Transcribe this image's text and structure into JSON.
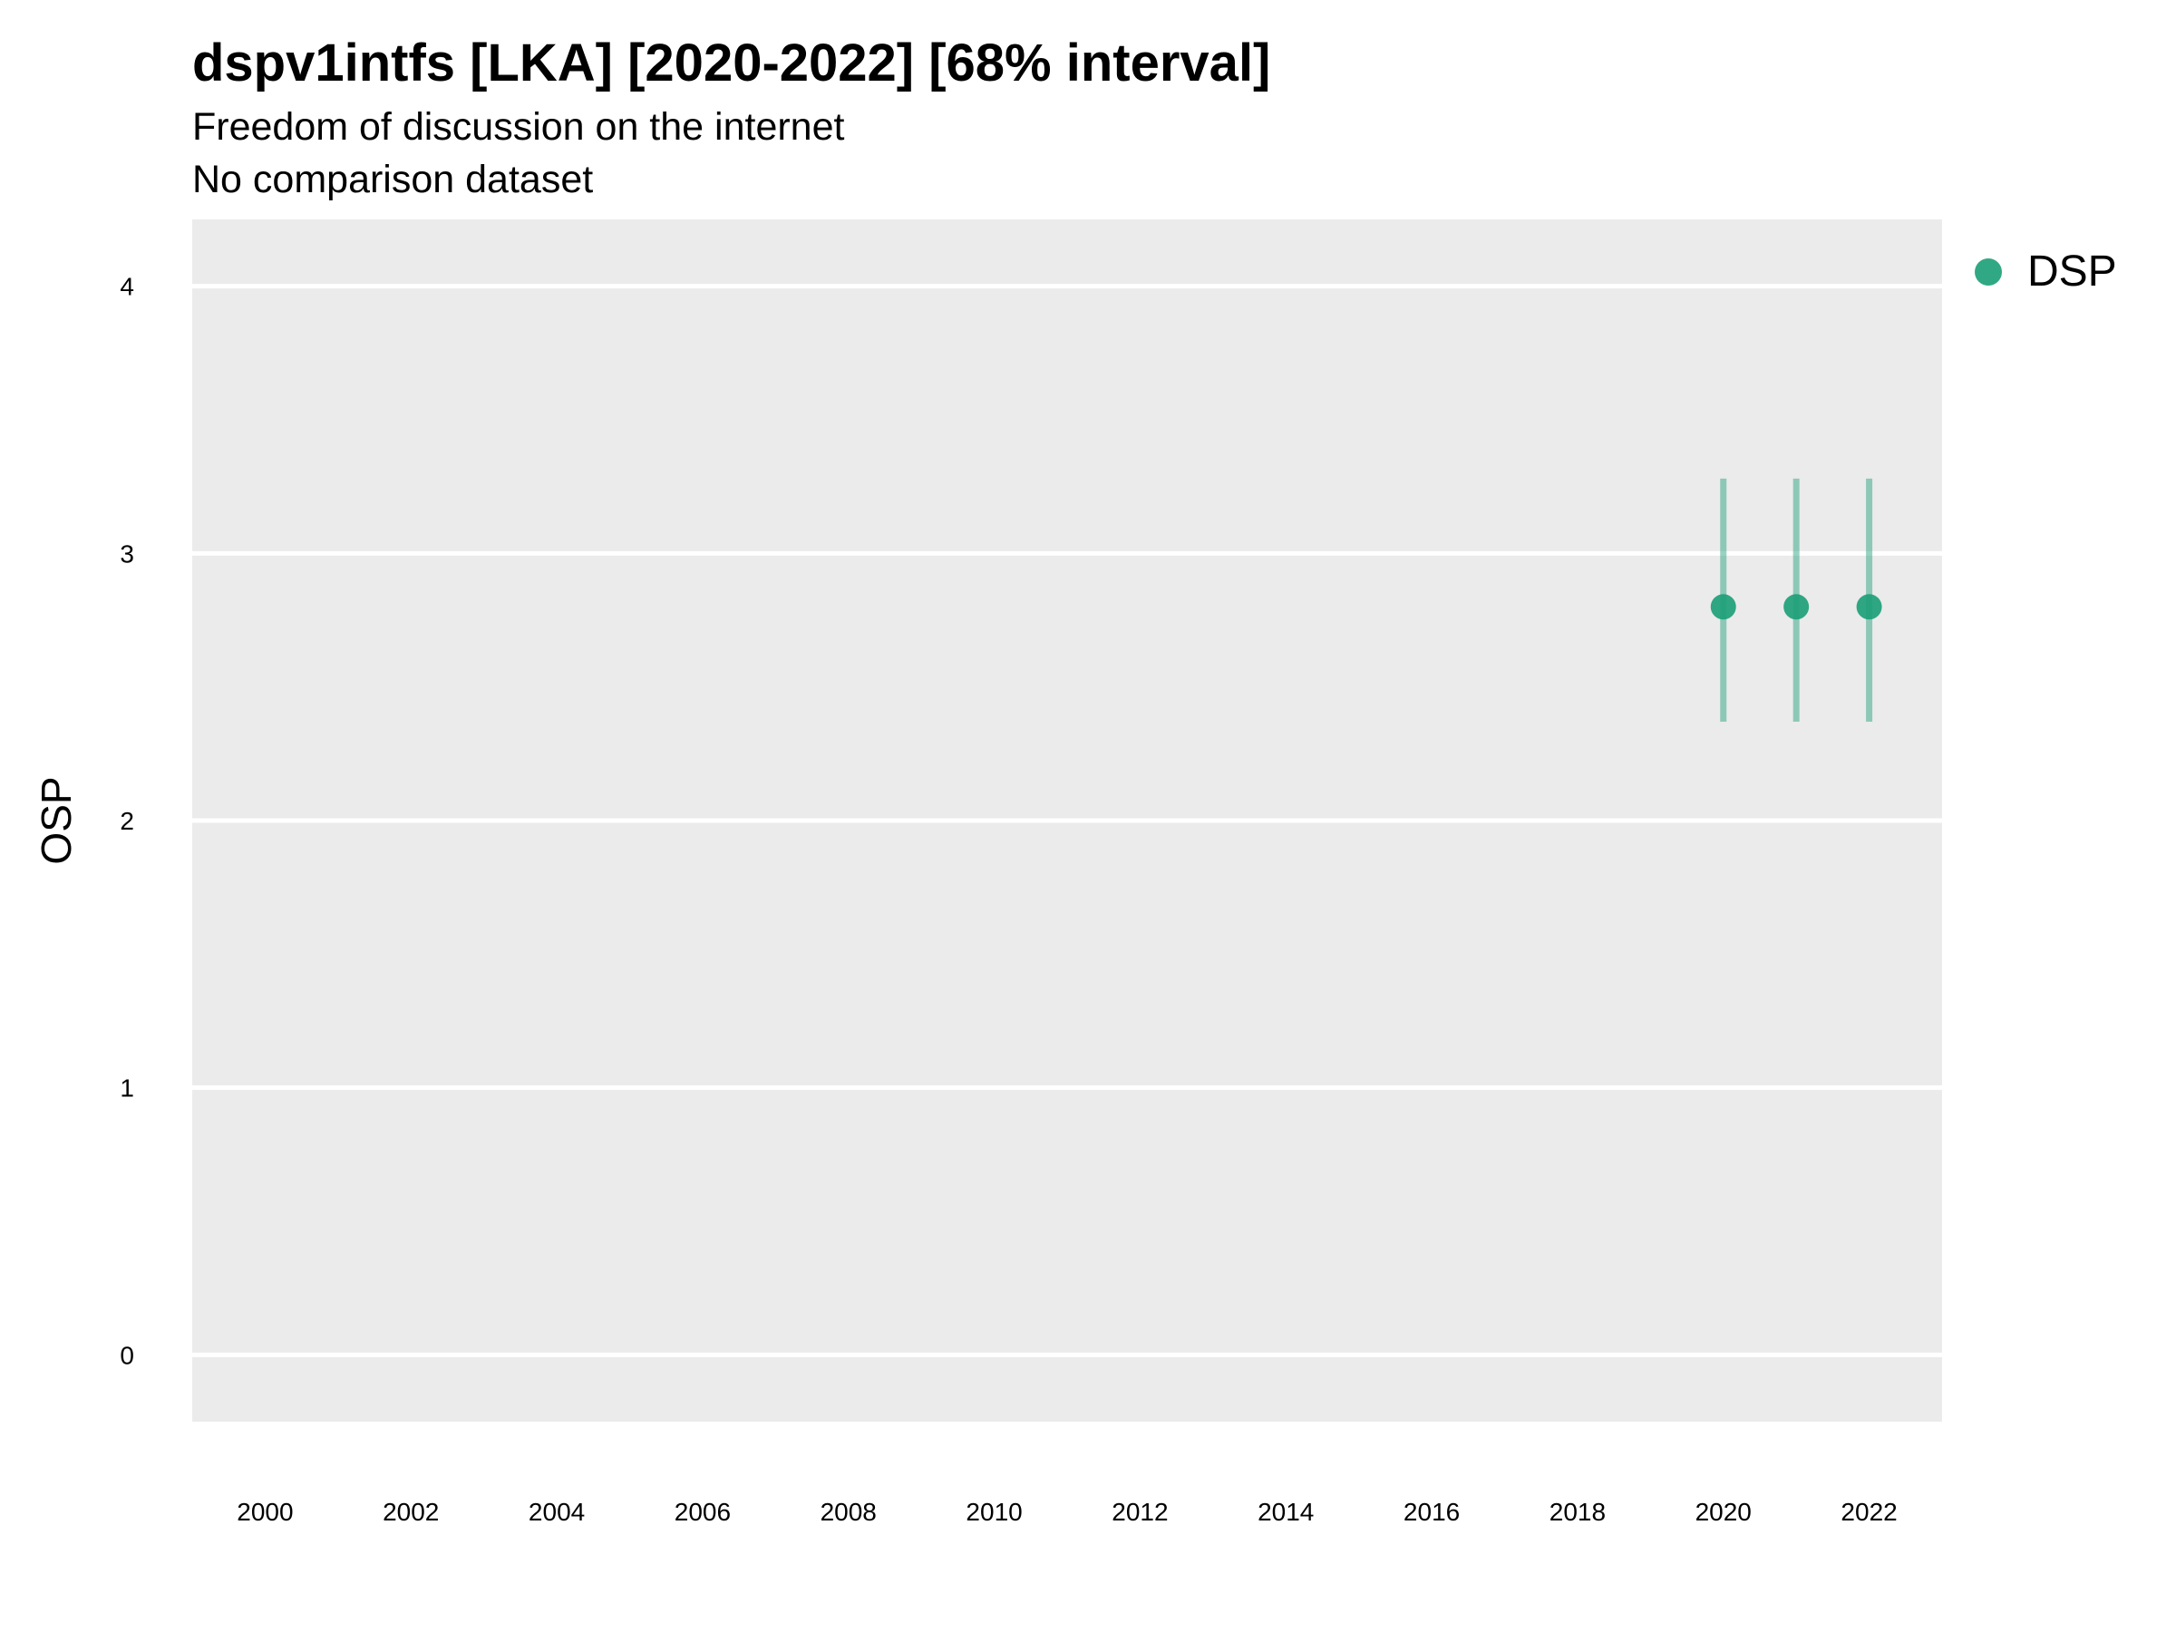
{
  "chart_data": {
    "type": "scatter",
    "title": "dspv1intfs [LKA] [2020-2022] [68% interval]",
    "subtitle": "Freedom of discussion on the internet",
    "caption": "No comparison dataset",
    "xlabel": "",
    "ylabel": "OSP",
    "xlim": [
      1999,
      2023
    ],
    "ylim": [
      -0.25,
      4.25
    ],
    "x_ticks": [
      2000,
      2002,
      2004,
      2006,
      2008,
      2010,
      2012,
      2014,
      2016,
      2018,
      2020,
      2022
    ],
    "y_ticks": [
      0,
      1,
      2,
      3,
      4
    ],
    "grid": true,
    "legend_position": "right",
    "series": [
      {
        "name": "DSP",
        "color": "#1b9e77",
        "points": [
          {
            "x": 2020,
            "y": 2.8,
            "lower": 2.37,
            "upper": 3.28
          },
          {
            "x": 2021,
            "y": 2.8,
            "lower": 2.37,
            "upper": 3.28
          },
          {
            "x": 2022,
            "y": 2.8,
            "lower": 2.37,
            "upper": 3.28
          }
        ]
      }
    ]
  }
}
